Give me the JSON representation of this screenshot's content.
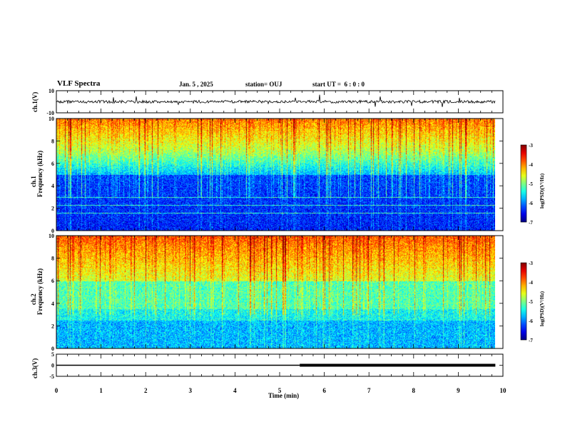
{
  "header": {
    "title": "VLF Spectra",
    "date": "Jan. 5 , 2025",
    "station": "station= OUJ",
    "start": "start UT =  6 : 0 : 0"
  },
  "chart_data": {
    "type": "heatmap",
    "xlabel": "Time (min)",
    "xlim": [
      0,
      10
    ],
    "xticks": [
      "0",
      "1",
      "2",
      "3",
      "4",
      "5",
      "6",
      "7",
      "8",
      "9",
      "10"
    ],
    "data_end_min": 9.83,
    "panels": [
      {
        "id": "ch1-waveform",
        "ylabel": "ch.1(V)",
        "ylim": [
          -10,
          10
        ],
        "yticks": [
          "10",
          "-10"
        ],
        "kind": "waveform",
        "level": 0
      },
      {
        "id": "ch1-spectrogram",
        "ylabel_channel": "ch.1",
        "ylabel": "Frequency (kHz)",
        "ylim": [
          0,
          10
        ],
        "yticks": [
          "0",
          "2",
          "4",
          "6",
          "8",
          "10"
        ],
        "kind": "spectrogram",
        "colorbar": {
          "label": "log(PSD)(V²/Hz)",
          "range": [
            -7,
            -3
          ],
          "ticks": [
            "-3",
            "-4",
            "-5",
            "-6",
            "-7"
          ]
        }
      },
      {
        "id": "ch2-spectrogram",
        "ylabel_channel": "ch.2",
        "ylabel": "Frequency (kHz)",
        "ylim": [
          0,
          10
        ],
        "yticks": [
          "0",
          "2",
          "4",
          "6",
          "8",
          "10"
        ],
        "kind": "spectrogram",
        "colorbar": {
          "label": "log(PSD)(V²/Hz)",
          "range": [
            -7,
            -3
          ],
          "ticks": [
            "-3",
            "-4",
            "-5",
            "-6",
            "-7"
          ]
        }
      },
      {
        "id": "ch3-trace",
        "ylabel": "ch.3(V)",
        "ylim": [
          -5,
          5
        ],
        "yticks": [
          "5",
          "0",
          "-5"
        ],
        "kind": "trace",
        "level": 0,
        "thick_from_min": 5.45
      }
    ]
  }
}
